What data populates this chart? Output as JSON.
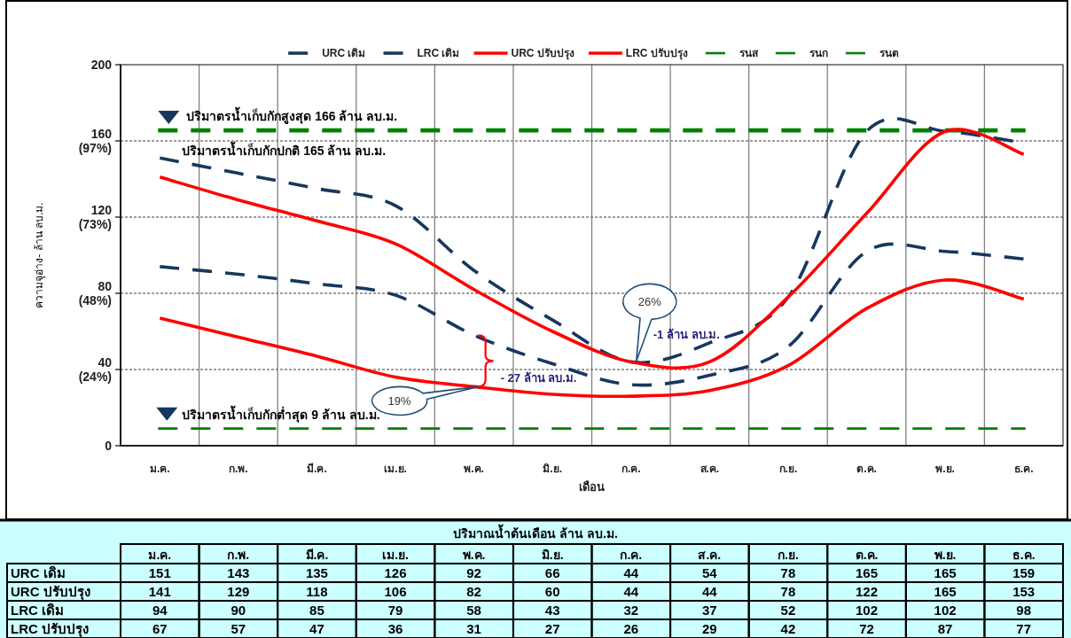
{
  "chart_data": {
    "type": "line",
    "xlabel": "เดือน",
    "ylabel": "ความจุอ่าง- ล้าน ลบ.ม.",
    "categories": [
      "ม.ค.",
      "ก.พ.",
      "มี.ค.",
      "เม.ย.",
      "พ.ค.",
      "มิ.ย.",
      "ก.ค.",
      "ส.ค.",
      "ก.ย.",
      "ต.ค.",
      "พ.ย.",
      "ธ.ค."
    ],
    "series": [
      {
        "name": "URC เดิม",
        "color": "#17375e",
        "line_style": "dashed",
        "values": [
          151,
          143,
          135,
          126,
          92,
          66,
          44,
          54,
          78,
          165,
          165,
          159
        ]
      },
      {
        "name": "LRC เดิม",
        "color": "#17375e",
        "line_style": "dashed",
        "values": [
          94,
          90,
          85,
          79,
          58,
          43,
          32,
          37,
          52,
          102,
          102,
          98
        ]
      },
      {
        "name": "URC ปรับปรุง",
        "color": "#ff0000",
        "line_style": "solid",
        "values": [
          141,
          129,
          118,
          106,
          82,
          60,
          44,
          44,
          78,
          122,
          165,
          153
        ]
      },
      {
        "name": "LRC ปรับปรุง",
        "color": "#ff0000",
        "line_style": "solid",
        "values": [
          67,
          57,
          47,
          36,
          31,
          27,
          26,
          29,
          42,
          72,
          87,
          77
        ]
      }
    ],
    "ylim": [
      0,
      200
    ],
    "yticks": [
      0,
      {
        "value": 40,
        "label": "40\n(24%)"
      },
      {
        "value": 80,
        "label": "80\n(48%)"
      },
      {
        "value": 120,
        "label": "120\n(73%)"
      },
      {
        "value": 160,
        "label": "160\n(97%)"
      },
      200
    ],
    "ref_lines": [
      {
        "axis": "y",
        "value": 166,
        "label": "รนส",
        "color": "#008000",
        "line_style": "dashed"
      },
      {
        "axis": "y",
        "value": 165,
        "label": "รนก",
        "color": "#008000",
        "line_style": "dashed"
      },
      {
        "axis": "y",
        "value": 9,
        "label": "รนต",
        "color": "#008000",
        "line_style": "dashed"
      }
    ],
    "annotations": [
      {
        "text": "ปริมาตรน้ำเก็บกักสูงสุด 166 ล้าน ลบ.ม.",
        "y": 166
      },
      {
        "text": "ปริมาตรน้ำเก็บกักปกติ 165 ล้าน ลบ.ม.",
        "y": 165
      },
      {
        "text": "ปริมาตรน้ำเก็บกักต่ำสุด 9 ล้าน ลบ.ม.",
        "y": 9
      },
      "26%",
      {
        "text": "-1 ล้าน ลบ.ม.",
        "x": "ก.ค.",
        "y": 44
      },
      {
        "text": "19%",
        "x": "พ.ค.",
        "y": 31
      },
      {
        "text": "- 27 ล้าน ลบ.ม.",
        "x": "พ.ค.",
        "y": 31
      },
      "ปริมาณน้ำต้นเดือน ล้าน ลบ.ม."
    ],
    "data_labels": true,
    "grid": true,
    "legend": "top"
  }
}
